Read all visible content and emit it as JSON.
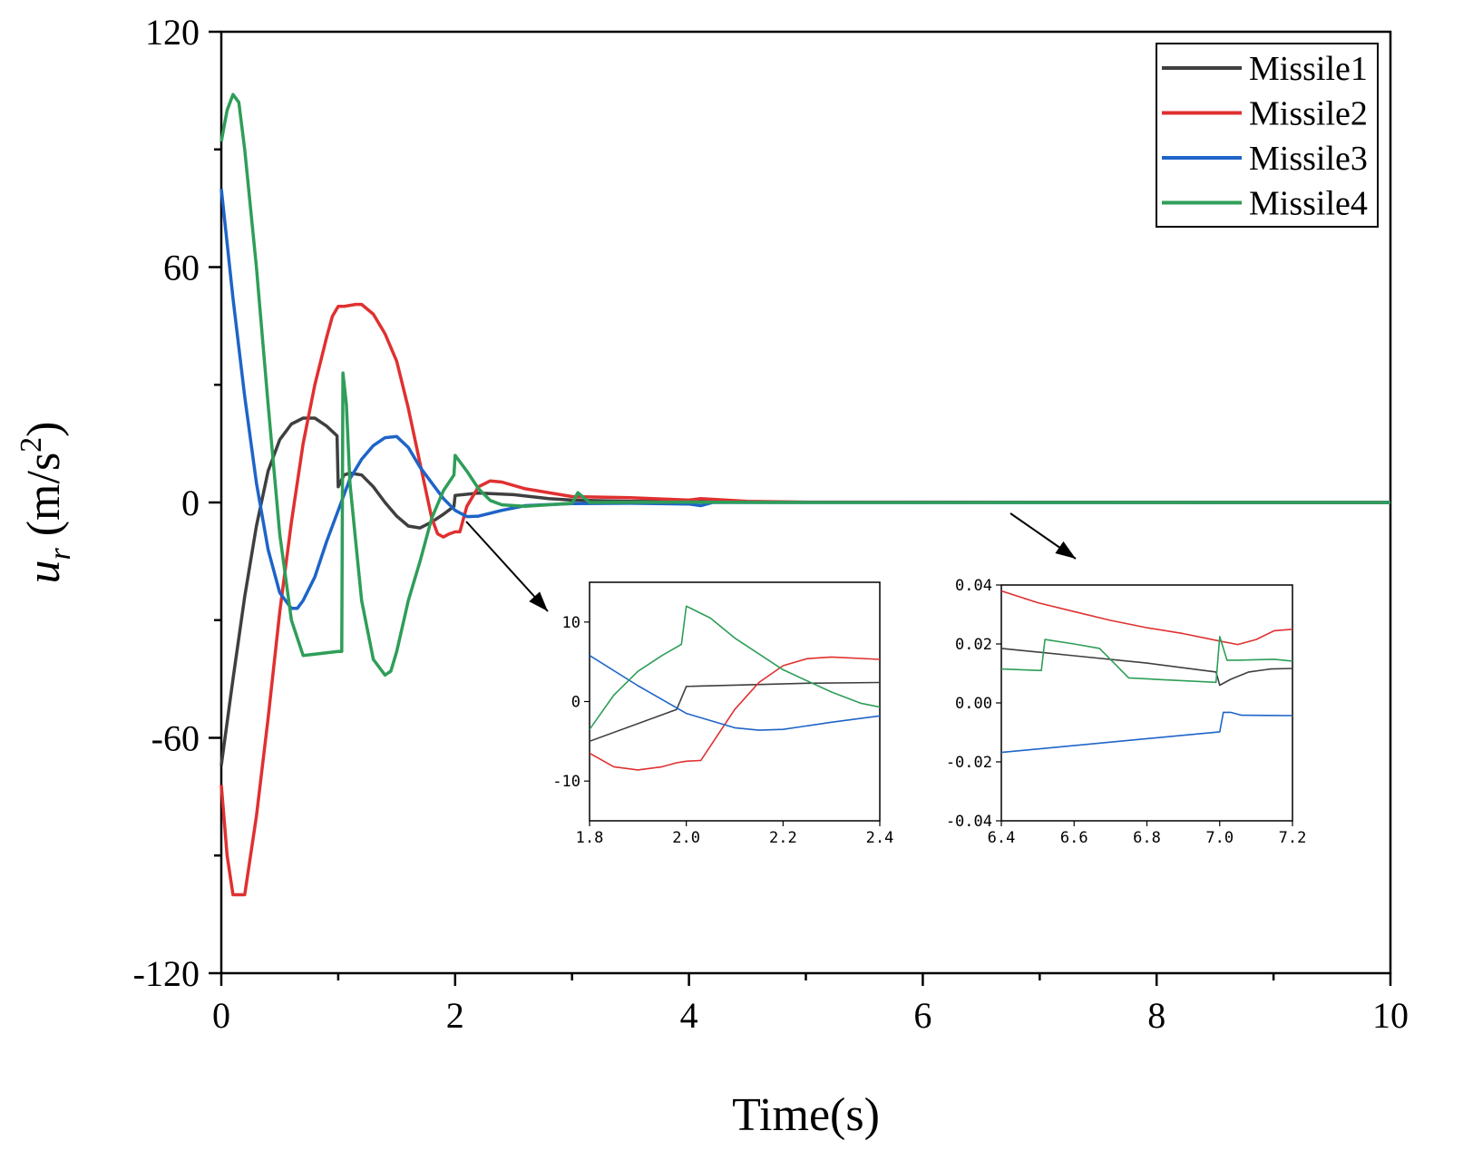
{
  "chart_data": {
    "type": "line",
    "title": "",
    "xlabel": "Time(s)",
    "ylabel_main": "u",
    "ylabel_sub": "r",
    "ylabel_unit": " (m/s",
    "ylabel_sup": "2",
    "ylabel_close": ")",
    "xlim": [
      0,
      10
    ],
    "ylim": [
      -120,
      120
    ],
    "xticks": [
      0,
      2,
      4,
      6,
      8,
      10
    ],
    "xtick_labels": [
      "0",
      "2",
      "4",
      "6",
      "8",
      "10"
    ],
    "yticks": [
      -120,
      -60,
      0,
      60,
      120
    ],
    "ytick_labels": [
      "-120",
      "-60",
      "0",
      "60",
      "120"
    ],
    "legend_position": "top-right",
    "series": [
      {
        "name": "Missile1",
        "color": "#3f3f3f",
        "points": [
          [
            0,
            -67
          ],
          [
            0.1,
            -45
          ],
          [
            0.2,
            -24
          ],
          [
            0.3,
            -6
          ],
          [
            0.4,
            8
          ],
          [
            0.5,
            16
          ],
          [
            0.6,
            20
          ],
          [
            0.7,
            21.5
          ],
          [
            0.8,
            21.5
          ],
          [
            0.9,
            19.5
          ],
          [
            0.99,
            17
          ],
          [
            1.0,
            4
          ],
          [
            1.05,
            7
          ],
          [
            1.1,
            7.5
          ],
          [
            1.2,
            7
          ],
          [
            1.3,
            4
          ],
          [
            1.4,
            0
          ],
          [
            1.5,
            -3.5
          ],
          [
            1.6,
            -6
          ],
          [
            1.7,
            -6.5
          ],
          [
            1.8,
            -5
          ],
          [
            1.9,
            -3
          ],
          [
            1.99,
            -1
          ],
          [
            2.0,
            1.8
          ],
          [
            2.2,
            2.4
          ],
          [
            2.5,
            2
          ],
          [
            2.8,
            1
          ],
          [
            3.0,
            0.6
          ],
          [
            3.5,
            0.3
          ],
          [
            4.0,
            0.2
          ],
          [
            5.0,
            0.05
          ],
          [
            10,
            0
          ]
        ]
      },
      {
        "name": "Missile2",
        "color": "#e03030",
        "points": [
          [
            0,
            -72
          ],
          [
            0.05,
            -90
          ],
          [
            0.1,
            -100
          ],
          [
            0.2,
            -100
          ],
          [
            0.3,
            -80
          ],
          [
            0.4,
            -55
          ],
          [
            0.5,
            -28
          ],
          [
            0.6,
            -5
          ],
          [
            0.7,
            15
          ],
          [
            0.8,
            30
          ],
          [
            0.9,
            42
          ],
          [
            0.95,
            47.5
          ],
          [
            1.0,
            50
          ],
          [
            1.05,
            50
          ],
          [
            1.15,
            50.5
          ],
          [
            1.2,
            50.5
          ],
          [
            1.3,
            48
          ],
          [
            1.4,
            43
          ],
          [
            1.5,
            36
          ],
          [
            1.6,
            24
          ],
          [
            1.7,
            10
          ],
          [
            1.8,
            -4
          ],
          [
            1.85,
            -8
          ],
          [
            1.9,
            -8.8
          ],
          [
            1.95,
            -8
          ],
          [
            2.0,
            -7.5
          ],
          [
            2.04,
            -7.5
          ],
          [
            2.1,
            -1
          ],
          [
            2.2,
            4
          ],
          [
            2.3,
            5.5
          ],
          [
            2.4,
            5.2
          ],
          [
            2.6,
            3.5
          ],
          [
            3.0,
            1.5
          ],
          [
            3.5,
            1.2
          ],
          [
            4.0,
            0.6
          ],
          [
            4.1,
            1.0
          ],
          [
            4.5,
            0.3
          ],
          [
            5.0,
            0.1
          ],
          [
            10,
            0
          ]
        ]
      },
      {
        "name": "Missile3",
        "color": "#1e64c8",
        "points": [
          [
            0,
            80
          ],
          [
            0.1,
            52
          ],
          [
            0.2,
            27
          ],
          [
            0.3,
            5
          ],
          [
            0.4,
            -12
          ],
          [
            0.5,
            -23
          ],
          [
            0.6,
            -27
          ],
          [
            0.65,
            -27
          ],
          [
            0.7,
            -25
          ],
          [
            0.8,
            -19
          ],
          [
            0.9,
            -10
          ],
          [
            1.0,
            -2
          ],
          [
            1.1,
            6
          ],
          [
            1.2,
            11
          ],
          [
            1.3,
            14.5
          ],
          [
            1.4,
            16.5
          ],
          [
            1.5,
            16.8
          ],
          [
            1.6,
            14
          ],
          [
            1.7,
            9
          ],
          [
            1.8,
            5
          ],
          [
            1.9,
            1
          ],
          [
            2.0,
            -2
          ],
          [
            2.1,
            -3.6
          ],
          [
            2.2,
            -3.5
          ],
          [
            2.4,
            -2
          ],
          [
            2.6,
            -0.8
          ],
          [
            3.0,
            -0.3
          ],
          [
            3.5,
            -0.2
          ],
          [
            4.0,
            -0.4
          ],
          [
            4.1,
            -0.8
          ],
          [
            4.2,
            0
          ],
          [
            5.0,
            0
          ],
          [
            10,
            0
          ]
        ]
      },
      {
        "name": "Missile4",
        "color": "#2e9e58",
        "points": [
          [
            0,
            92
          ],
          [
            0.05,
            100
          ],
          [
            0.1,
            104
          ],
          [
            0.15,
            102
          ],
          [
            0.2,
            90
          ],
          [
            0.3,
            60
          ],
          [
            0.4,
            25
          ],
          [
            0.5,
            -8
          ],
          [
            0.6,
            -30
          ],
          [
            0.7,
            -39
          ],
          [
            1.0,
            -38
          ],
          [
            1.03,
            -38
          ],
          [
            1.04,
            33
          ],
          [
            1.07,
            25
          ],
          [
            1.1,
            5
          ],
          [
            1.15,
            -10
          ],
          [
            1.2,
            -25
          ],
          [
            1.3,
            -40
          ],
          [
            1.4,
            -44
          ],
          [
            1.45,
            -43
          ],
          [
            1.5,
            -38
          ],
          [
            1.6,
            -25
          ],
          [
            1.7,
            -15
          ],
          [
            1.8,
            -4
          ],
          [
            1.9,
            3
          ],
          [
            1.99,
            7
          ],
          [
            2.0,
            12
          ],
          [
            2.1,
            8
          ],
          [
            2.2,
            3.5
          ],
          [
            2.3,
            0.5
          ],
          [
            2.4,
            -0.6
          ],
          [
            2.6,
            -1
          ],
          [
            3.0,
            -0.2
          ],
          [
            3.05,
            2.5
          ],
          [
            3.15,
            0
          ],
          [
            4.0,
            0.1
          ],
          [
            5.0,
            0
          ],
          [
            10,
            0
          ]
        ]
      }
    ],
    "insets": [
      {
        "xlim": [
          1.8,
          2.4
        ],
        "ylim": [
          -15,
          15
        ],
        "xticks": [
          1.8,
          2.0,
          2.2,
          2.4
        ],
        "xtick_labels": [
          "1.8",
          "2.0",
          "2.2",
          "2.4"
        ],
        "yticks": [
          -10,
          0,
          10
        ],
        "ytick_labels": [
          "-10",
          "0",
          "10"
        ],
        "series": [
          {
            "name": "Missile1",
            "points": [
              [
                1.8,
                -5
              ],
              [
                1.98,
                -1
              ],
              [
                2.0,
                1.9
              ],
              [
                2.25,
                2.3
              ],
              [
                2.4,
                2.4
              ]
            ]
          },
          {
            "name": "Missile2",
            "points": [
              [
                1.8,
                -6.5
              ],
              [
                1.85,
                -8.2
              ],
              [
                1.9,
                -8.6
              ],
              [
                1.95,
                -8.2
              ],
              [
                1.98,
                -7.7
              ],
              [
                2.0,
                -7.5
              ],
              [
                2.03,
                -7.4
              ],
              [
                2.1,
                -1
              ],
              [
                2.15,
                2.4
              ],
              [
                2.2,
                4.5
              ],
              [
                2.25,
                5.4
              ],
              [
                2.3,
                5.6
              ],
              [
                2.4,
                5.3
              ]
            ]
          },
          {
            "name": "Missile3",
            "points": [
              [
                1.8,
                5.8
              ],
              [
                1.9,
                2
              ],
              [
                2.0,
                -1.5
              ],
              [
                2.1,
                -3.3
              ],
              [
                2.15,
                -3.6
              ],
              [
                2.2,
                -3.5
              ],
              [
                2.3,
                -2.6
              ],
              [
                2.4,
                -1.8
              ]
            ]
          },
          {
            "name": "Missile4",
            "points": [
              [
                1.8,
                -3.5
              ],
              [
                1.85,
                0.8
              ],
              [
                1.9,
                3.8
              ],
              [
                1.95,
                5.8
              ],
              [
                1.99,
                7.2
              ],
              [
                2.0,
                12
              ],
              [
                2.05,
                10.5
              ],
              [
                2.1,
                8
              ],
              [
                2.2,
                4
              ],
              [
                2.3,
                1.2
              ],
              [
                2.36,
                -0.2
              ],
              [
                2.4,
                -0.7
              ]
            ]
          }
        ]
      },
      {
        "xlim": [
          6.4,
          7.2
        ],
        "ylim": [
          -0.04,
          0.04
        ],
        "xticks": [
          6.4,
          6.6,
          6.8,
          7.0,
          7.2
        ],
        "xtick_labels": [
          "6.4",
          "6.6",
          "6.8",
          "7.0",
          "7.2"
        ],
        "yticks": [
          -0.04,
          -0.02,
          0.0,
          0.02,
          0.04
        ],
        "ytick_labels": [
          "-0.04",
          "-0.02",
          "0.00",
          "0.02",
          "0.04"
        ],
        "series": [
          {
            "name": "Missile1",
            "points": [
              [
                6.4,
                0.0185
              ],
              [
                6.6,
                0.016
              ],
              [
                6.8,
                0.0135
              ],
              [
                6.99,
                0.0105
              ],
              [
                7.0,
                0.006
              ],
              [
                7.03,
                0.008
              ],
              [
                7.08,
                0.0105
              ],
              [
                7.14,
                0.0115
              ],
              [
                7.2,
                0.0117
              ]
            ]
          },
          {
            "name": "Missile2",
            "points": [
              [
                6.4,
                0.038
              ],
              [
                6.5,
                0.034
              ],
              [
                6.6,
                0.031
              ],
              [
                6.7,
                0.028
              ],
              [
                6.8,
                0.0255
              ],
              [
                6.9,
                0.0235
              ],
              [
                7.0,
                0.021
              ],
              [
                7.05,
                0.0198
              ],
              [
                7.1,
                0.0215
              ],
              [
                7.15,
                0.0245
              ],
              [
                7.2,
                0.025
              ]
            ]
          },
          {
            "name": "Missile3",
            "points": [
              [
                6.4,
                -0.0168
              ],
              [
                7.0,
                -0.0098
              ],
              [
                7.01,
                -0.0032
              ],
              [
                7.03,
                -0.0032
              ],
              [
                7.06,
                -0.0042
              ],
              [
                7.2,
                -0.0043
              ]
            ]
          },
          {
            "name": "Missile4",
            "points": [
              [
                6.4,
                0.0115
              ],
              [
                6.51,
                0.011
              ],
              [
                6.52,
                0.0215
              ],
              [
                6.6,
                0.02
              ],
              [
                6.67,
                0.0185
              ],
              [
                6.75,
                0.0085
              ],
              [
                6.85,
                0.0078
              ],
              [
                6.99,
                0.007
              ],
              [
                7.0,
                0.0225
              ],
              [
                7.02,
                0.0145
              ],
              [
                7.05,
                0.0145
              ],
              [
                7.15,
                0.0148
              ],
              [
                7.2,
                0.0142
              ]
            ]
          }
        ]
      }
    ]
  }
}
